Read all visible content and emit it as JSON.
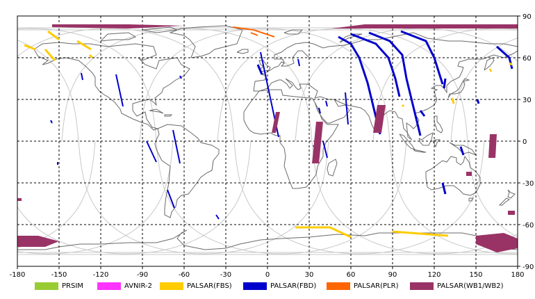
{
  "map": {
    "x_ticks": [
      "-180",
      "-150",
      "-120",
      "-90",
      "-60",
      "-30",
      "0",
      "30",
      "60",
      "90",
      "120",
      "150",
      "180"
    ],
    "y_ticks": [
      "90",
      "60",
      "30",
      "0",
      "-30",
      "-60",
      "-90"
    ]
  },
  "legend": [
    {
      "label": "PRSIM",
      "color": "#99cc33"
    },
    {
      "label": "AVNIR-2",
      "color": "#ff33ff"
    },
    {
      "label": "PALSAR(FBS)",
      "color": "#ffcc00"
    },
    {
      "label": "PALSAR(FBD)",
      "color": "#0000cc"
    },
    {
      "label": "PALSAR(PLR)",
      "color": "#ff6600"
    },
    {
      "label": "PALSAR(WB1/WB2)",
      "color": "#993366"
    }
  ]
}
